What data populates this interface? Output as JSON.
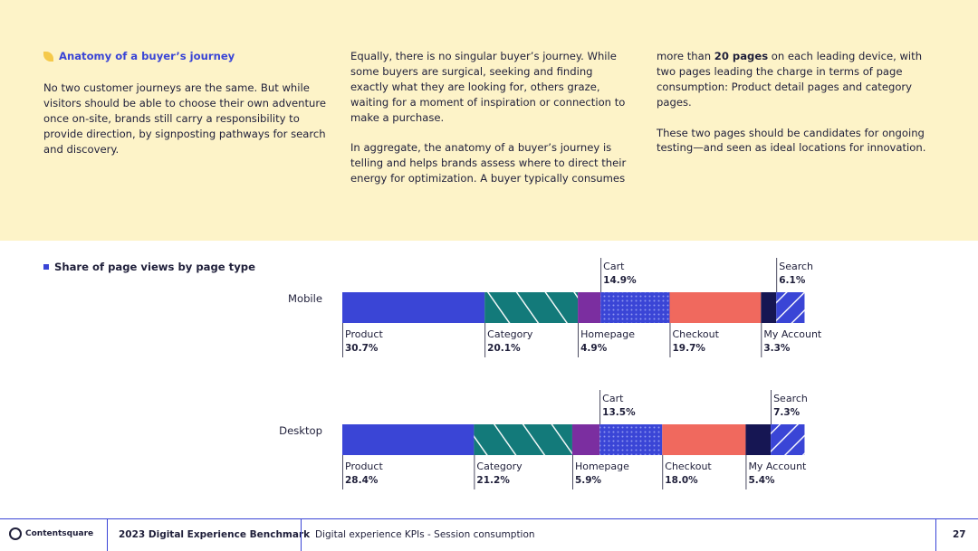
{
  "intro": {
    "heading": "Anatomy of a buyer’s journey",
    "col1_p1": "No two customer journeys are the same. But while visitors should be able to choose their own adventure once on-site, brands still carry a responsibility to provide direction, by signposting pathways for search and discovery.",
    "col2_p1": "Equally, there is no singular buyer’s journey. While some buyers are surgical, seeking and finding exactly what they are looking for, others graze, waiting for a moment of inspiration or connection to make a purchase.",
    "col2_p2": "In aggregate, the anatomy of a buyer’s journey is telling and helps brands assess where to direct their energy for optimization. A buyer typically consumes",
    "col3_p1_pre": "more than ",
    "col3_p1_bold": "20 pages",
    "col3_p1_post": " on each leading device, with two pages leading the charge in terms of page consumption: Product detail pages and category pages.",
    "col3_p2": "These two pages should be candidates for ongoing testing—and seen as ideal locations for innovation."
  },
  "chart_data": {
    "type": "bar",
    "stacked": true,
    "orientation": "horizontal",
    "title": "Share of page views by page type",
    "categories": [
      "Mobile",
      "Desktop"
    ],
    "units": "%",
    "series": [
      {
        "name": "Product",
        "values": [
          30.7,
          28.4
        ],
        "color": "#3a45d6",
        "pattern": "solid"
      },
      {
        "name": "Category",
        "values": [
          20.1,
          21.2
        ],
        "color": "#137a7a",
        "pattern": "diagonal"
      },
      {
        "name": "Homepage",
        "values": [
          4.9,
          5.9
        ],
        "color": "#7b2ea0",
        "pattern": "solid"
      },
      {
        "name": "Cart",
        "values": [
          14.9,
          13.5
        ],
        "color": "#3a45d6",
        "pattern": "dots"
      },
      {
        "name": "Checkout",
        "values": [
          19.7,
          18.0
        ],
        "color": "#f0695e",
        "pattern": "solid"
      },
      {
        "name": "My Account",
        "values": [
          3.3,
          5.4
        ],
        "color": "#161653",
        "pattern": "solid"
      },
      {
        "name": "Search",
        "values": [
          6.1,
          7.3
        ],
        "color": "#3a45d6",
        "pattern": "diagonal"
      }
    ],
    "label_placement": [
      "below",
      "below",
      "below",
      "above",
      "below",
      "below",
      "above"
    ]
  },
  "footer": {
    "brand": "Contentsquare",
    "report": "2023 Digital Experience Benchmark",
    "section": "Digital experience KPIs - Session consumption",
    "page": "27"
  }
}
